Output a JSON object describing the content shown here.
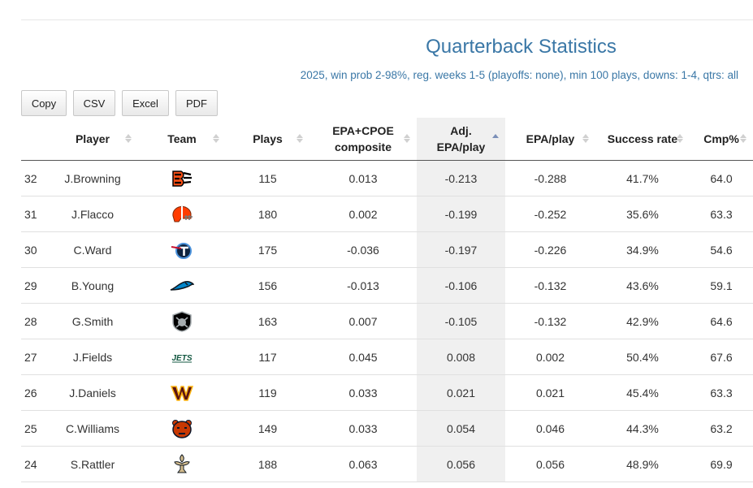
{
  "title": "Quarterback Statistics",
  "subtitle": "2025, win prob 2-98%, reg. weeks 1-5 (playoffs: none), min 100 plays, downs: 1-4, qtrs: all",
  "buttons": [
    "Copy",
    "CSV",
    "Excel",
    "PDF"
  ],
  "columns": {
    "player": "Player",
    "team": "Team",
    "plays": "Plays",
    "composite_1": "EPA+CPOE",
    "composite_2": "composite",
    "adj_1": "Adj.",
    "adj_2": "EPA/play",
    "epa": "EPA/play",
    "success": "Success rate",
    "cmp": "Cmp%"
  },
  "colors": {
    "accent": "#3a77a6",
    "sorted_column_bg": "#f0f0f0"
  },
  "rows": [
    {
      "rank": "32",
      "player": "J.Browning",
      "team_icon": "bengals-logo",
      "plays": "115",
      "composite": "0.013",
      "adj_epa": "-0.213",
      "epa": "-0.288",
      "success": "41.7%",
      "cmp": "64.0"
    },
    {
      "rank": "31",
      "player": "J.Flacco",
      "team_icon": "browns-logo",
      "plays": "180",
      "composite": "0.002",
      "adj_epa": "-0.199",
      "epa": "-0.252",
      "success": "35.6%",
      "cmp": "63.3"
    },
    {
      "rank": "30",
      "player": "C.Ward",
      "team_icon": "titans-logo",
      "plays": "175",
      "composite": "-0.036",
      "adj_epa": "-0.197",
      "epa": "-0.226",
      "success": "34.9%",
      "cmp": "54.6"
    },
    {
      "rank": "29",
      "player": "B.Young",
      "team_icon": "panthers-logo",
      "plays": "156",
      "composite": "-0.013",
      "adj_epa": "-0.106",
      "epa": "-0.132",
      "success": "43.6%",
      "cmp": "59.1"
    },
    {
      "rank": "28",
      "player": "G.Smith",
      "team_icon": "raiders-logo",
      "plays": "163",
      "composite": "0.007",
      "adj_epa": "-0.105",
      "epa": "-0.132",
      "success": "42.9%",
      "cmp": "64.6"
    },
    {
      "rank": "27",
      "player": "J.Fields",
      "team_icon": "jets-logo",
      "plays": "117",
      "composite": "0.045",
      "adj_epa": "0.008",
      "epa": "0.002",
      "success": "50.4%",
      "cmp": "67.6"
    },
    {
      "rank": "26",
      "player": "J.Daniels",
      "team_icon": "commanders-logo",
      "plays": "119",
      "composite": "0.033",
      "adj_epa": "0.021",
      "epa": "0.021",
      "success": "45.4%",
      "cmp": "63.3"
    },
    {
      "rank": "25",
      "player": "C.Williams",
      "team_icon": "bears-logo",
      "plays": "149",
      "composite": "0.033",
      "adj_epa": "0.054",
      "epa": "0.046",
      "success": "44.3%",
      "cmp": "63.2"
    },
    {
      "rank": "24",
      "player": "S.Rattler",
      "team_icon": "saints-logo",
      "plays": "188",
      "composite": "0.063",
      "adj_epa": "0.056",
      "epa": "0.056",
      "success": "48.9%",
      "cmp": "69.9"
    }
  ]
}
